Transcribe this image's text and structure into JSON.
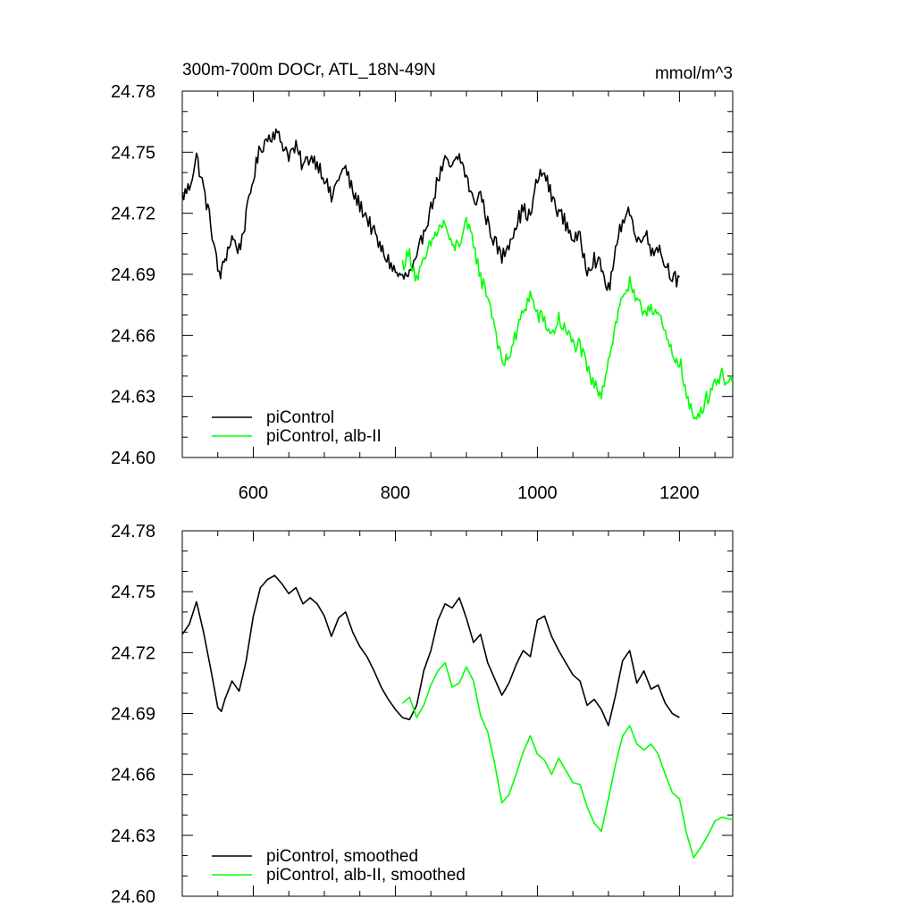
{
  "chart_data": [
    {
      "type": "line",
      "title": "300m-700m DOCr, ATL_18N-49N",
      "units": "mmol/m^3",
      "xlim": [
        500,
        1275
      ],
      "ylim": [
        24.6,
        24.78
      ],
      "x_ticks": [
        600,
        800,
        1000,
        1200
      ],
      "x_tick_labels": [
        "600",
        "800",
        "1000",
        "1200"
      ],
      "y_ticks": [
        24.6,
        24.63,
        24.66,
        24.69,
        24.72,
        24.75,
        24.78
      ],
      "y_tick_labels": [
        "24.60",
        "24.63",
        "24.66",
        "24.69",
        "24.72",
        "24.75",
        "24.78"
      ],
      "grid": false,
      "legend_position": "bottom-left",
      "series": [
        {
          "name": "piControl",
          "color": "#000000",
          "noisy": true,
          "x": [
            500,
            510,
            520,
            530,
            540,
            550,
            555,
            560,
            570,
            580,
            590,
            600,
            610,
            620,
            630,
            640,
            650,
            660,
            670,
            680,
            690,
            700,
            710,
            720,
            730,
            740,
            750,
            760,
            770,
            780,
            790,
            800,
            810,
            820,
            830,
            840,
            850,
            860,
            870,
            880,
            890,
            900,
            910,
            920,
            930,
            940,
            950,
            960,
            970,
            980,
            990,
            1000,
            1010,
            1020,
            1030,
            1040,
            1050,
            1060,
            1070,
            1080,
            1090,
            1100,
            1110,
            1120,
            1130,
            1140,
            1150,
            1160,
            1170,
            1180,
            1190,
            1200
          ],
          "y": [
            24.728,
            24.733,
            24.748,
            24.732,
            24.715,
            24.692,
            24.69,
            24.698,
            24.708,
            24.702,
            24.718,
            24.738,
            24.752,
            24.757,
            24.76,
            24.755,
            24.749,
            24.752,
            24.743,
            24.748,
            24.745,
            24.738,
            24.727,
            24.738,
            24.742,
            24.73,
            24.724,
            24.718,
            24.71,
            24.702,
            24.697,
            24.691,
            24.688,
            24.69,
            24.696,
            24.712,
            24.722,
            24.737,
            24.745,
            24.742,
            24.748,
            24.738,
            24.725,
            24.73,
            24.715,
            24.706,
            24.698,
            24.706,
            24.715,
            24.722,
            24.718,
            24.737,
            24.74,
            24.728,
            24.721,
            24.715,
            24.708,
            24.707,
            24.693,
            24.698,
            24.693,
            24.682,
            24.7,
            24.718,
            24.722,
            24.705,
            24.712,
            24.702,
            24.704,
            24.695,
            24.69,
            24.685
          ]
        },
        {
          "name": "piControl, alb-II",
          "color": "#00ff00",
          "noisy": true,
          "x": [
            810,
            820,
            830,
            840,
            850,
            860,
            870,
            880,
            890,
            900,
            910,
            920,
            930,
            940,
            950,
            960,
            970,
            980,
            990,
            1000,
            1010,
            1020,
            1030,
            1040,
            1050,
            1060,
            1070,
            1080,
            1090,
            1100,
            1110,
            1120,
            1130,
            1140,
            1150,
            1160,
            1170,
            1180,
            1190,
            1200,
            1210,
            1220,
            1230,
            1240,
            1250,
            1260,
            1270,
            1275
          ],
          "y": [
            24.695,
            24.7,
            24.688,
            24.695,
            24.705,
            24.712,
            24.715,
            24.702,
            24.706,
            24.714,
            24.706,
            24.688,
            24.68,
            24.665,
            24.645,
            24.65,
            24.66,
            24.672,
            24.68,
            24.67,
            24.667,
            24.66,
            24.668,
            24.662,
            24.656,
            24.655,
            24.643,
            24.635,
            24.632,
            24.648,
            24.665,
            24.68,
            24.685,
            24.675,
            24.672,
            24.675,
            24.67,
            24.66,
            24.65,
            24.648,
            24.63,
            24.618,
            24.624,
            24.63,
            24.638,
            24.64,
            24.638,
            24.638
          ]
        }
      ]
    },
    {
      "type": "line",
      "xlim": [
        500,
        1275
      ],
      "ylim": [
        24.6,
        24.78
      ],
      "x_ticks": [
        600,
        800,
        1000,
        1200
      ],
      "y_ticks": [
        24.6,
        24.63,
        24.66,
        24.69,
        24.72,
        24.75,
        24.78
      ],
      "y_tick_labels": [
        "24.60",
        "24.63",
        "24.66",
        "24.69",
        "24.72",
        "24.75",
        "24.78"
      ],
      "grid": false,
      "legend_position": "bottom-left",
      "series": [
        {
          "name": "piControl, smoothed",
          "color": "#000000",
          "noisy": false,
          "x": [
            500,
            510,
            520,
            530,
            540,
            550,
            555,
            560,
            570,
            580,
            590,
            600,
            610,
            620,
            630,
            640,
            650,
            660,
            670,
            680,
            690,
            700,
            710,
            720,
            730,
            740,
            750,
            760,
            770,
            780,
            790,
            800,
            810,
            820,
            830,
            840,
            850,
            860,
            870,
            880,
            890,
            900,
            910,
            920,
            930,
            940,
            950,
            960,
            970,
            980,
            990,
            1000,
            1010,
            1020,
            1030,
            1040,
            1050,
            1060,
            1070,
            1080,
            1090,
            1100,
            1110,
            1120,
            1130,
            1140,
            1150,
            1160,
            1170,
            1180,
            1190,
            1200
          ],
          "y": [
            24.729,
            24.734,
            24.745,
            24.73,
            24.712,
            24.693,
            24.691,
            24.697,
            24.706,
            24.701,
            24.716,
            24.738,
            24.752,
            24.756,
            24.758,
            24.754,
            24.749,
            24.752,
            24.744,
            24.747,
            24.744,
            24.738,
            24.728,
            24.737,
            24.74,
            24.73,
            24.723,
            24.718,
            24.711,
            24.703,
            24.697,
            24.692,
            24.688,
            24.687,
            24.694,
            24.711,
            24.721,
            24.736,
            24.744,
            24.742,
            24.747,
            24.737,
            24.725,
            24.729,
            24.715,
            24.707,
            24.699,
            24.705,
            24.714,
            24.721,
            24.718,
            24.736,
            24.738,
            24.728,
            24.721,
            24.715,
            24.709,
            24.706,
            24.694,
            24.697,
            24.692,
            24.684,
            24.699,
            24.716,
            24.721,
            24.705,
            24.711,
            24.702,
            24.704,
            24.695,
            24.69,
            24.688
          ]
        },
        {
          "name": "piControl, alb-II, smoothed",
          "color": "#00ff00",
          "noisy": false,
          "x": [
            810,
            820,
            830,
            840,
            850,
            860,
            870,
            880,
            890,
            900,
            910,
            920,
            930,
            940,
            950,
            960,
            970,
            980,
            990,
            1000,
            1010,
            1020,
            1030,
            1040,
            1050,
            1060,
            1070,
            1080,
            1090,
            1100,
            1110,
            1120,
            1130,
            1140,
            1150,
            1160,
            1170,
            1180,
            1190,
            1200,
            1210,
            1220,
            1230,
            1240,
            1250,
            1260,
            1270,
            1275
          ],
          "y": [
            24.695,
            24.698,
            24.688,
            24.694,
            24.704,
            24.711,
            24.715,
            24.703,
            24.705,
            24.713,
            24.706,
            24.689,
            24.681,
            24.665,
            24.646,
            24.65,
            24.66,
            24.671,
            24.679,
            24.67,
            24.667,
            24.66,
            24.668,
            24.662,
            24.656,
            24.655,
            24.644,
            24.636,
            24.632,
            24.648,
            24.665,
            24.679,
            24.684,
            24.675,
            24.672,
            24.675,
            24.67,
            24.66,
            24.651,
            24.648,
            24.631,
            24.619,
            24.624,
            24.63,
            24.637,
            24.639,
            24.638,
            24.638
          ]
        }
      ]
    }
  ]
}
